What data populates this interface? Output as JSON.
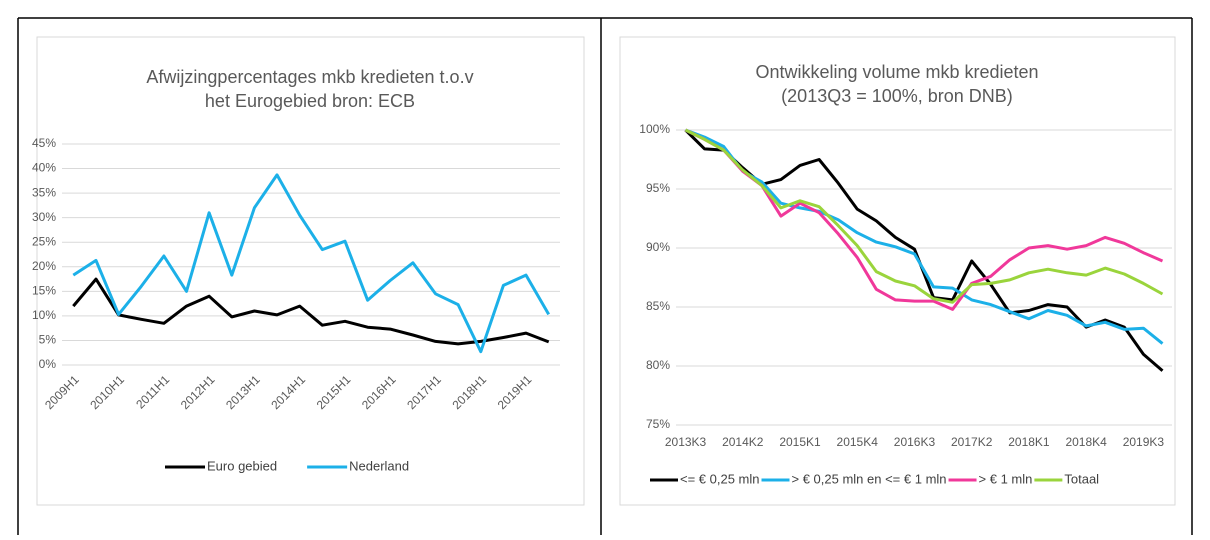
{
  "chart_data": [
    {
      "type": "line",
      "title": [
        "Afwijzingpercentages mkb kredieten t.o.v",
        "het Eurogebied bron: ECB"
      ],
      "categories": [
        "2009H1",
        null,
        "2010H1",
        null,
        "2011H1",
        null,
        "2012H1",
        null,
        "2013H1",
        null,
        "2014H1",
        null,
        "2015H1",
        null,
        "2016H1",
        null,
        "2017H1",
        null,
        "2018H1",
        null,
        "2019H1",
        null
      ],
      "series": [
        {
          "name": "Euro gebied",
          "color": "#000000",
          "values": [
            12,
            17.5,
            10.2,
            9.3,
            8.5,
            12,
            14,
            9.8,
            11,
            10.2,
            12,
            8.1,
            8.9,
            7.7,
            7.3,
            6.1,
            4.8,
            4.3,
            4.8,
            5.6,
            6.5,
            4.7
          ]
        },
        {
          "name": "Nederland",
          "color": "#1cb0e8",
          "values": [
            18.3,
            21.3,
            10.3,
            16,
            22.2,
            15,
            31,
            18.3,
            32,
            38.7,
            30.5,
            23.5,
            25.2,
            13.2,
            17.2,
            20.8,
            14.5,
            12.3,
            2.7,
            16.2,
            18.3,
            10.3
          ]
        }
      ],
      "ylim": [
        0,
        45
      ],
      "yticks": [
        {
          "value": 0,
          "label": "0%"
        },
        {
          "value": 5,
          "label": "5%"
        },
        {
          "value": 10,
          "label": "10%"
        },
        {
          "value": 15,
          "label": "15%"
        },
        {
          "value": 20,
          "label": "20%"
        },
        {
          "value": 25,
          "label": "25%"
        },
        {
          "value": 30,
          "label": "30%"
        },
        {
          "value": 35,
          "label": "35%"
        },
        {
          "value": 40,
          "label": "40%"
        },
        {
          "value": 45,
          "label": "45%"
        }
      ],
      "grid": true,
      "legend": "bottom"
    },
    {
      "type": "line",
      "title": [
        "Ontwikkeling volume mkb kredieten",
        "(2013Q3 = 100%, bron DNB)"
      ],
      "categories": [
        "2013K3",
        null,
        null,
        "2014K2",
        null,
        null,
        "2015K1",
        null,
        null,
        "2015K4",
        null,
        null,
        "2016K3",
        null,
        null,
        "2017K2",
        null,
        null,
        "2018K1",
        null,
        null,
        "2018K4",
        null,
        null,
        "2019K3",
        null
      ],
      "series": [
        {
          "name": "<= € 0,25 mln",
          "color": "#000000",
          "values": [
            100,
            98.4,
            98.3,
            96.8,
            95.4,
            95.8,
            97.0,
            97.5,
            95.5,
            93.3,
            92.3,
            90.9,
            89.9,
            85.8,
            85.6,
            88.9,
            86.9,
            84.5,
            84.7,
            85.2,
            85.0,
            83.3,
            83.9,
            83.3,
            81.0,
            79.6
          ]
        },
        {
          "name": "> € 0,25 mln en <= € 1 mln",
          "color": "#1cb0e8",
          "values": [
            100,
            99.4,
            98.6,
            96.5,
            95.6,
            93.8,
            93.4,
            93.1,
            92.4,
            91.3,
            90.5,
            90.1,
            89.5,
            86.7,
            86.6,
            85.6,
            85.2,
            84.6,
            84.0,
            84.7,
            84.3,
            83.4,
            83.7,
            83.1,
            83.2,
            81.9
          ]
        },
        {
          "name": "> € 1 mln",
          "color": "#f0389a",
          "values": [
            100,
            99.2,
            98.3,
            96.5,
            95.3,
            92.7,
            93.8,
            93.0,
            91.2,
            89.2,
            86.5,
            85.6,
            85.5,
            85.5,
            84.8,
            87.0,
            87.6,
            89.0,
            90.0,
            90.2,
            89.9,
            90.2,
            90.9,
            90.4,
            89.6,
            88.9
          ]
        },
        {
          "name": "Totaal",
          "color": "#9ad43c",
          "values": [
            100,
            99.2,
            98.3,
            96.6,
            95.3,
            93.4,
            94.0,
            93.5,
            91.9,
            90.2,
            88.0,
            87.2,
            86.8,
            85.7,
            85.4,
            86.9,
            87.0,
            87.3,
            87.9,
            88.2,
            87.9,
            87.7,
            88.3,
            87.8,
            87.0,
            86.1
          ]
        }
      ],
      "ylim": [
        75,
        100
      ],
      "yticks": [
        {
          "value": 75,
          "label": "75%"
        },
        {
          "value": 80,
          "label": "80%"
        },
        {
          "value": 85,
          "label": "85%"
        },
        {
          "value": 90,
          "label": "90%"
        },
        {
          "value": 95,
          "label": "95%"
        },
        {
          "value": 100,
          "label": "100%"
        }
      ],
      "grid": true,
      "legend": "bottom"
    }
  ]
}
